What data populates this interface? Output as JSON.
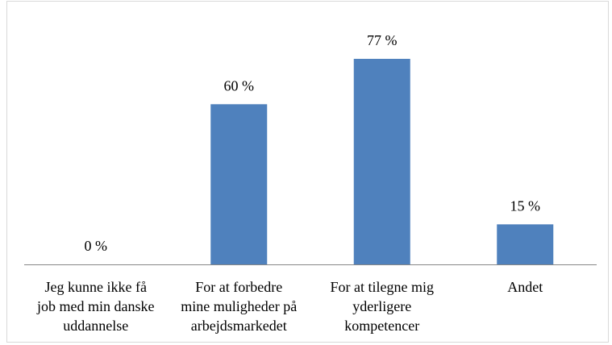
{
  "chart_data": {
    "type": "bar",
    "categories": [
      "Jeg kunne ikke få\njob med min danske\nuddannelse",
      "For at forbedre\nmine muligheder på\narbejdsmarkedet",
      "For at tilegne mig\nyderligere\nkompetencer",
      "Andet"
    ],
    "values": [
      0,
      60,
      77,
      15
    ],
    "value_labels": [
      "0 %",
      "60 %",
      "77 %",
      "15 %"
    ],
    "color": "#4f81bd"
  }
}
